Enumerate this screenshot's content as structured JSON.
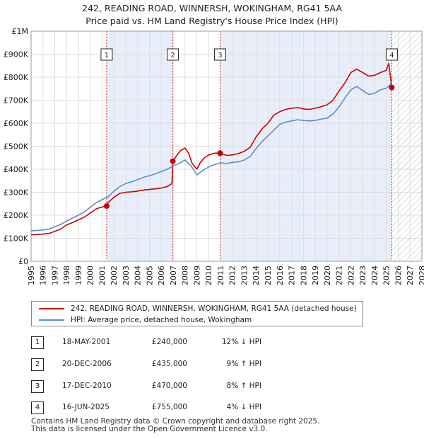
{
  "title_line1": "242, READING ROAD, WINNERSH, WOKINGHAM, RG41 5AA",
  "title_line2": "Price paid vs. HM Land Registry's House Price Index (HPI)",
  "colors": {
    "property": "#cc0000",
    "hpi": "#5b8fc9",
    "shade": "#e8eef9",
    "grid": "#dddddd"
  },
  "chart_data": {
    "type": "line",
    "xlim": [
      1995,
      2028
    ],
    "ylim": [
      0,
      1000000
    ],
    "y_ticks": [
      0,
      100000,
      200000,
      300000,
      400000,
      500000,
      600000,
      700000,
      800000,
      900000,
      1000000
    ],
    "y_tick_labels": [
      "£0",
      "£100K",
      "£200K",
      "£300K",
      "£400K",
      "£500K",
      "£600K",
      "£700K",
      "£800K",
      "£900K",
      "£1M"
    ],
    "x_ticks": [
      1995,
      1996,
      1997,
      1998,
      1999,
      2000,
      2001,
      2002,
      2003,
      2004,
      2005,
      2006,
      2007,
      2008,
      2009,
      2010,
      2011,
      2012,
      2013,
      2014,
      2015,
      2016,
      2017,
      2018,
      2019,
      2020,
      2021,
      2022,
      2023,
      2024,
      2025,
      2026,
      2027,
      2028
    ],
    "shaded_ranges": [
      [
        2001.38,
        2006.97
      ],
      [
        2010.96,
        2025.46
      ]
    ],
    "hatched_from": 2025.46,
    "series": [
      {
        "name": "242, READING ROAD, WINNERSH, WOKINGHAM, RG41 5AA (detached house)",
        "key": "property",
        "x": [
          1995.0,
          1995.5,
          1996.0,
          1996.5,
          1997.0,
          1997.5,
          1998.0,
          1998.5,
          1999.0,
          1999.5,
          2000.0,
          2000.5,
          2001.0,
          2001.38,
          2001.5,
          2002.0,
          2002.5,
          2003.0,
          2003.5,
          2004.0,
          2004.5,
          2005.0,
          2005.5,
          2006.0,
          2006.5,
          2006.9,
          2006.97,
          2007.3,
          2007.6,
          2008.0,
          2008.3,
          2008.6,
          2009.0,
          2009.3,
          2009.6,
          2010.0,
          2010.5,
          2010.96,
          2011.5,
          2012.0,
          2012.5,
          2013.0,
          2013.5,
          2014.0,
          2014.5,
          2015.0,
          2015.5,
          2016.0,
          2016.5,
          2017.0,
          2017.5,
          2018.0,
          2018.5,
          2019.0,
          2019.5,
          2020.0,
          2020.5,
          2021.0,
          2021.5,
          2022.0,
          2022.5,
          2023.0,
          2023.5,
          2024.0,
          2024.5,
          2025.0,
          2025.2,
          2025.46
        ],
        "y": [
          115000,
          116000,
          118000,
          121000,
          130000,
          140000,
          158000,
          168000,
          180000,
          192000,
          210000,
          228000,
          236000,
          240000,
          255000,
          278000,
          295000,
          300000,
          302000,
          305000,
          310000,
          312000,
          315000,
          318000,
          325000,
          338000,
          435000,
          460000,
          480000,
          492000,
          470000,
          425000,
          400000,
          430000,
          448000,
          462000,
          470000,
          470000,
          460000,
          462000,
          468000,
          478000,
          495000,
          540000,
          575000,
          600000,
          635000,
          650000,
          660000,
          665000,
          668000,
          662000,
          660000,
          665000,
          672000,
          680000,
          700000,
          740000,
          775000,
          820000,
          835000,
          820000,
          805000,
          808000,
          820000,
          830000,
          860000,
          755000
        ]
      },
      {
        "name": "HPI: Average price, detached house, Wokingham",
        "key": "hpi",
        "x": [
          1995.0,
          1995.5,
          1996.0,
          1996.5,
          1997.0,
          1997.5,
          1998.0,
          1998.5,
          1999.0,
          1999.5,
          2000.0,
          2000.5,
          2001.0,
          2001.5,
          2002.0,
          2002.5,
          2003.0,
          2003.5,
          2004.0,
          2004.5,
          2005.0,
          2005.5,
          2006.0,
          2006.5,
          2007.0,
          2007.5,
          2008.0,
          2008.5,
          2009.0,
          2009.5,
          2010.0,
          2010.5,
          2011.0,
          2011.5,
          2012.0,
          2012.5,
          2013.0,
          2013.5,
          2014.0,
          2014.5,
          2015.0,
          2015.5,
          2016.0,
          2016.5,
          2017.0,
          2017.5,
          2018.0,
          2018.5,
          2019.0,
          2019.5,
          2020.0,
          2020.5,
          2021.0,
          2021.5,
          2022.0,
          2022.5,
          2023.0,
          2023.5,
          2024.0,
          2024.5,
          2025.0,
          2025.3,
          2025.46
        ],
        "y": [
          132000,
          134000,
          136000,
          140000,
          150000,
          160000,
          175000,
          188000,
          200000,
          215000,
          235000,
          255000,
          268000,
          280000,
          305000,
          325000,
          338000,
          345000,
          355000,
          365000,
          372000,
          380000,
          390000,
          400000,
          415000,
          425000,
          440000,
          415000,
          375000,
          395000,
          410000,
          420000,
          428000,
          425000,
          430000,
          432000,
          440000,
          455000,
          490000,
          520000,
          545000,
          570000,
          595000,
          605000,
          610000,
          615000,
          612000,
          610000,
          612000,
          618000,
          622000,
          640000,
          670000,
          710000,
          745000,
          760000,
          742000,
          725000,
          730000,
          745000,
          752000,
          765000,
          785000
        ]
      }
    ],
    "markers": [
      {
        "label": "1",
        "x": 2001.38,
        "y": 240000
      },
      {
        "label": "2",
        "x": 2006.97,
        "y": 435000
      },
      {
        "label": "3",
        "x": 2010.96,
        "y": 470000
      },
      {
        "label": "4",
        "x": 2025.46,
        "y": 755000
      }
    ]
  },
  "legend": [
    {
      "key": "property",
      "label": "242, READING ROAD, WINNERSH, WOKINGHAM, RG41 5AA (detached house)"
    },
    {
      "key": "hpi",
      "label": "HPI: Average price, detached house, Wokingham"
    }
  ],
  "transactions": [
    {
      "num": "1",
      "date": "18-MAY-2001",
      "price": "£240,000",
      "hpi": "12% ↓ HPI"
    },
    {
      "num": "2",
      "date": "20-DEC-2006",
      "price": "£435,000",
      "hpi": "9% ↑ HPI"
    },
    {
      "num": "3",
      "date": "17-DEC-2010",
      "price": "£470,000",
      "hpi": "8% ↑ HPI"
    },
    {
      "num": "4",
      "date": "16-JUN-2025",
      "price": "£755,000",
      "hpi": "4% ↓ HPI"
    }
  ],
  "footer_line1": "Contains HM Land Registry data © Crown copyright and database right 2025.",
  "footer_line2": "This data is licensed under the Open Government Licence v3.0."
}
